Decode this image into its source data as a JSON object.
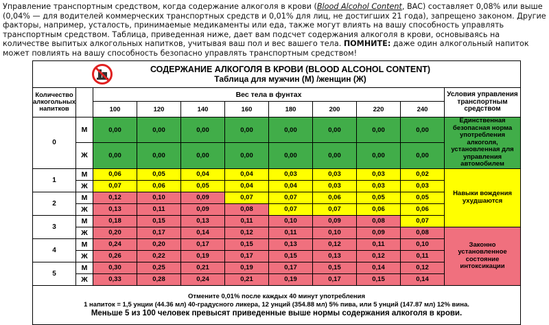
{
  "intro": {
    "p1": "Управление транспортным средством, когда содержание алкоголя в крови (",
    "em": "Blood Alcohol Content",
    "p2": ", BAC) составляет 0,08% или выше (0,04% — для водителей коммерческих транспортных средств и 0,01% для лиц, не достигших 21 года), запрещено законом. Другие факторы, например, усталость, принимаемые медикаменты или еда, также могут влиять на вашу способность управлять транспортным средством. Таблица, приведенная ниже, дает вам подсчет содержания алкоголя в крови, основываясь на количестве выпитых алкогольных напитков, учитывая ваш пол и вес вашего тела. ",
    "strong": "ПОМНИТЕ:",
    "p3": " даже один алкогольный напиток может повлиять на вашу способность безопасно управлять транспортным средством!"
  },
  "table": {
    "title": "СОДЕРЖАНИЕ АЛКОГОЛЯ В КРОВИ (BLOOD ALCOHOL CONTENT)",
    "subtitle": "Таблица для мужчин (М) /женщин (Ж)",
    "drinks_header": "Количество алкогольных напитков",
    "weight_header": "Вес тела в фунтах",
    "conditions_header": "Условия управления транспортным средством",
    "weights": [
      "100",
      "120",
      "140",
      "160",
      "180",
      "200",
      "220",
      "240"
    ],
    "groups": [
      {
        "drinks": "0",
        "rows": [
          {
            "sex": "М",
            "cells": [
              "0,00",
              "0,00",
              "0,00",
              "0,00",
              "0,00",
              "0,00",
              "0,00",
              "0,00"
            ],
            "colors": [
              "#41ad49",
              "#41ad49",
              "#41ad49",
              "#41ad49",
              "#41ad49",
              "#41ad49",
              "#41ad49",
              "#41ad49"
            ]
          },
          {
            "sex": "Ж",
            "cells": [
              "0,00",
              "0,00",
              "0,00",
              "0,00",
              "0,00",
              "0,00",
              "0,00",
              "0,00"
            ],
            "colors": [
              "#41ad49",
              "#41ad49",
              "#41ad49",
              "#41ad49",
              "#41ad49",
              "#41ad49",
              "#41ad49",
              "#41ad49"
            ]
          }
        ]
      },
      {
        "drinks": "1",
        "rows": [
          {
            "sex": "М",
            "cells": [
              "0,06",
              "0,05",
              "0,04",
              "0,04",
              "0,03",
              "0,03",
              "0,03",
              "0,02"
            ],
            "colors": [
              "#ffff00",
              "#ffff00",
              "#ffff00",
              "#ffff00",
              "#ffff00",
              "#ffff00",
              "#ffff00",
              "#ffff00"
            ]
          },
          {
            "sex": "Ж",
            "cells": [
              "0,07",
              "0,06",
              "0,05",
              "0,04",
              "0,04",
              "0,03",
              "0,03",
              "0,03"
            ],
            "colors": [
              "#ffff00",
              "#ffff00",
              "#ffff00",
              "#ffff00",
              "#ffff00",
              "#ffff00",
              "#ffff00",
              "#ffff00"
            ]
          }
        ]
      },
      {
        "drinks": "2",
        "rows": [
          {
            "sex": "М",
            "cells": [
              "0,12",
              "0,10",
              "0,09",
              "0,07",
              "0,07",
              "0,06",
              "0,05",
              "0,05"
            ],
            "colors": [
              "#f0707e",
              "#f0707e",
              "#f0707e",
              "#ffff00",
              "#ffff00",
              "#ffff00",
              "#ffff00",
              "#ffff00"
            ]
          },
          {
            "sex": "Ж",
            "cells": [
              "0,13",
              "0,11",
              "0,09",
              "0,08",
              "0,07",
              "0,07",
              "0,06",
              "0,06"
            ],
            "colors": [
              "#f0707e",
              "#f0707e",
              "#f0707e",
              "#f0707e",
              "#ffff00",
              "#ffff00",
              "#ffff00",
              "#ffff00"
            ]
          }
        ]
      },
      {
        "drinks": "3",
        "rows": [
          {
            "sex": "М",
            "cells": [
              "0,18",
              "0,15",
              "0,13",
              "0,11",
              "0,10",
              "0,09",
              "0,08",
              "0,07"
            ],
            "colors": [
              "#f0707e",
              "#f0707e",
              "#f0707e",
              "#f0707e",
              "#f0707e",
              "#f0707e",
              "#f0707e",
              "#ffff00"
            ]
          },
          {
            "sex": "Ж",
            "cells": [
              "0,20",
              "0,17",
              "0,14",
              "0,12",
              "0,11",
              "0,10",
              "0,09",
              "0,08"
            ],
            "colors": [
              "#f0707e",
              "#f0707e",
              "#f0707e",
              "#f0707e",
              "#f0707e",
              "#f0707e",
              "#f0707e",
              "#f0707e"
            ]
          }
        ]
      },
      {
        "drinks": "4",
        "rows": [
          {
            "sex": "М",
            "cells": [
              "0,24",
              "0,20",
              "0,17",
              "0,15",
              "0,13",
              "0,12",
              "0,11",
              "0,10"
            ],
            "colors": [
              "#f0707e",
              "#f0707e",
              "#f0707e",
              "#f0707e",
              "#f0707e",
              "#f0707e",
              "#f0707e",
              "#f0707e"
            ]
          },
          {
            "sex": "Ж",
            "cells": [
              "0,26",
              "0,22",
              "0,19",
              "0,17",
              "0,15",
              "0,13",
              "0,12",
              "0,11"
            ],
            "colors": [
              "#f0707e",
              "#f0707e",
              "#f0707e",
              "#f0707e",
              "#f0707e",
              "#f0707e",
              "#f0707e",
              "#f0707e"
            ]
          }
        ]
      },
      {
        "drinks": "5",
        "rows": [
          {
            "sex": "М",
            "cells": [
              "0,30",
              "0,25",
              "0,21",
              "0,19",
              "0,17",
              "0,15",
              "0,14",
              "0,12"
            ],
            "colors": [
              "#f0707e",
              "#f0707e",
              "#f0707e",
              "#f0707e",
              "#f0707e",
              "#f0707e",
              "#f0707e",
              "#f0707e"
            ]
          },
          {
            "sex": "Ж",
            "cells": [
              "0,33",
              "0,28",
              "0,24",
              "0,21",
              "0,19",
              "0,17",
              "0,15",
              "0,14"
            ],
            "colors": [
              "#f0707e",
              "#f0707e",
              "#f0707e",
              "#f0707e",
              "#f0707e",
              "#f0707e",
              "#f0707e",
              "#f0707e"
            ]
          }
        ]
      }
    ],
    "conditions": [
      {
        "text": "Единственная безопасная норма употребления алкоголя, установленная для управления автомобилем",
        "color": "#41ad49"
      },
      {
        "text": "Навыки вождения ухудшаются",
        "color": "#ffff00"
      },
      {
        "text": "Законно установленное состояние интоксикации",
        "color": "#f0707e"
      }
    ],
    "footer": [
      "Отмените 0,01% после каждых 40 минут употребления",
      "1 напиток = 1,5 унции (44.36 мл) 40-градусного ликера, 12 унций (354.88 мл) 5% пива, или 5 унций (147.87 мл) 12% вина.",
      "Меньше 5 из 100 человек превысят приведенные выше нормы содержания алкоголя в крови."
    ]
  }
}
